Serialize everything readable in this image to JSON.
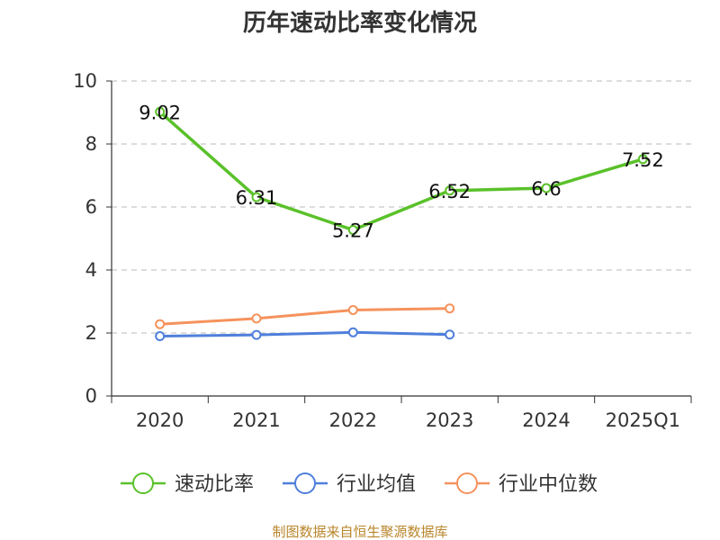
{
  "chart_data": {
    "type": "line",
    "title": "历年速动比率变化情况",
    "categories": [
      "2020",
      "2021",
      "2022",
      "2023",
      "2024",
      "2025Q1"
    ],
    "ylim": [
      0,
      10
    ],
    "yticks": [
      0,
      2,
      4,
      6,
      8,
      10
    ],
    "grid": true,
    "legend_position": "bottom",
    "series": [
      {
        "name": "速动比率",
        "color": "#5ac12a",
        "values": [
          9.02,
          6.31,
          5.27,
          6.52,
          6.6,
          7.52
        ],
        "labels": [
          "9.02",
          "6.31",
          "5.27",
          "6.52",
          "6.6",
          "7.52"
        ]
      },
      {
        "name": "行业均值",
        "color": "#4f7fdb",
        "values": [
          1.9,
          1.94,
          2.02,
          1.95,
          null,
          null
        ]
      },
      {
        "name": "行业中位数",
        "color": "#f5925d",
        "values": [
          2.28,
          2.46,
          2.73,
          2.78,
          null,
          null
        ]
      }
    ],
    "source": "制图数据来自恒生聚源数据库"
  }
}
